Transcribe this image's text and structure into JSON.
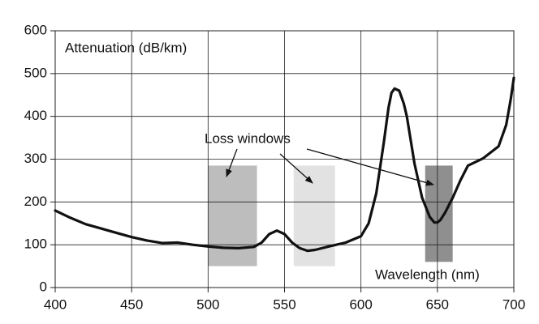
{
  "chart_data": {
    "type": "line",
    "y_label": "Attenuation (dB/km)",
    "x_label": "Wavelength (nm)",
    "annotation": "Loss windows",
    "x": [
      400,
      410,
      420,
      430,
      440,
      450,
      460,
      470,
      480,
      490,
      500,
      510,
      520,
      530,
      535,
      540,
      545,
      550,
      555,
      560,
      565,
      570,
      580,
      590,
      600,
      605,
      610,
      615,
      618,
      620,
      622,
      625,
      628,
      630,
      635,
      640,
      645,
      648,
      650,
      652,
      655,
      660,
      665,
      670,
      680,
      690,
      695,
      698,
      700
    ],
    "values": [
      180,
      163,
      148,
      138,
      128,
      118,
      110,
      104,
      105,
      100,
      96,
      93,
      92,
      95,
      105,
      125,
      133,
      125,
      105,
      92,
      86,
      88,
      97,
      105,
      120,
      150,
      220,
      340,
      420,
      455,
      465,
      460,
      430,
      400,
      290,
      210,
      165,
      152,
      152,
      158,
      175,
      210,
      250,
      285,
      302,
      330,
      380,
      440,
      490
    ],
    "color": "#111111",
    "windows": [
      {
        "x": [
          500,
          532
        ],
        "y": [
          50,
          285
        ],
        "color": "#bdbdbd"
      },
      {
        "x": [
          556,
          583
        ],
        "y": [
          50,
          285
        ],
        "color": "#e2e2e2"
      },
      {
        "x": [
          642,
          660
        ],
        "y": [
          60,
          285
        ],
        "color": "#8f8f8f"
      }
    ],
    "xlim": [
      400,
      700
    ],
    "xticks": [
      400,
      450,
      500,
      550,
      600,
      650,
      700
    ],
    "ylim": [
      0,
      600
    ],
    "yticks": [
      0,
      100,
      200,
      300,
      400,
      500,
      600
    ],
    "grid": true
  }
}
